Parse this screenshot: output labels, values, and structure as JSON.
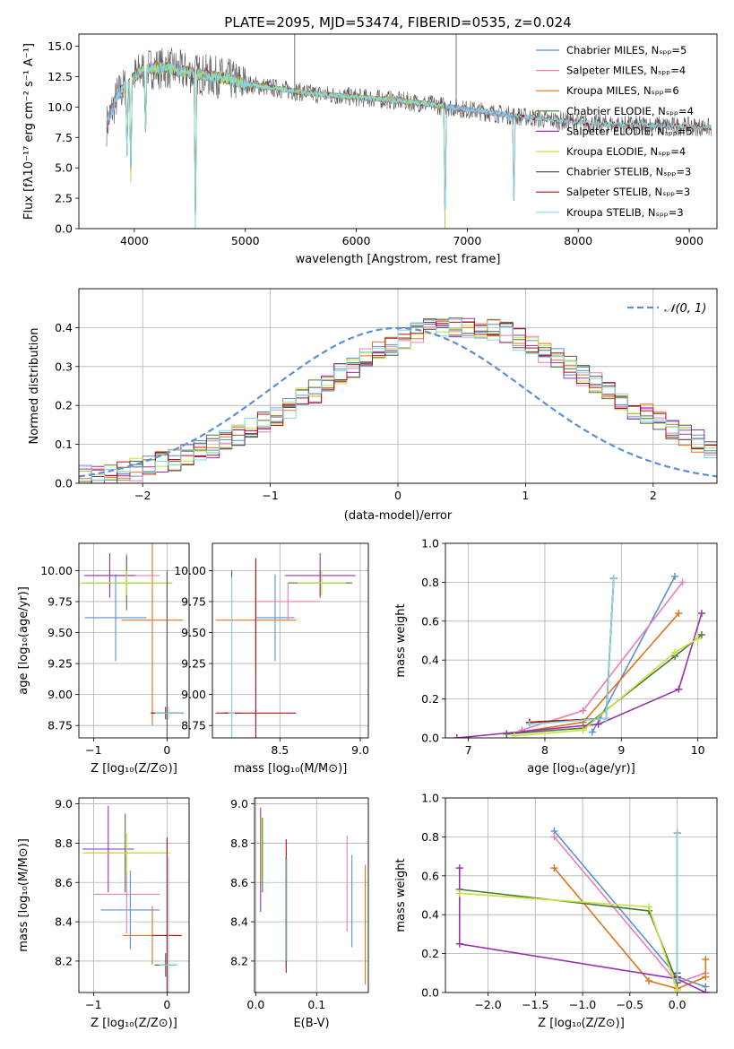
{
  "colors": {
    "chabrier_miles": "#5b8fd6",
    "salpeter_miles": "#e880b8",
    "kroupa_miles": "#e0741c",
    "chabrier_elodie": "#4a7a3a",
    "salpeter_elodie": "#9933aa",
    "kroupa_elodie": "#c8e040",
    "chabrier_stelib": "#555555",
    "salpeter_stelib": "#b01010",
    "kroupa_stelib": "#80d8e0",
    "normal": "#5b8fd6",
    "grid": "#b0b0b0"
  },
  "chart_data": [
    {
      "id": "spectrum",
      "type": "line",
      "title": "PLATE=2095, MJD=53474, FIBERID=0535, z=0.024",
      "xlabel": "wavelength [Angstrom, rest frame]",
      "ylabel": "Flux [fλ10⁻¹⁷ erg cm⁻² s⁻¹ A⁻¹]",
      "xlim": [
        3500,
        9250
      ],
      "ylim": [
        0,
        16
      ],
      "xticks": [
        "4000",
        "5000",
        "6000",
        "7000",
        "8000",
        "9000"
      ],
      "yticks": [
        "0.0",
        "2.5",
        "5.0",
        "7.5",
        "10.0",
        "12.5",
        "15.0"
      ],
      "legend_position": "top-right",
      "series": [
        {
          "name": "Chabrier MILES, Nₛₚₚ=5",
          "color_key": "chabrier_miles"
        },
        {
          "name": "Salpeter MILES, Nₛₚₚ=4",
          "color_key": "salpeter_miles"
        },
        {
          "name": "Kroupa MILES, Nₛₚₚ=6",
          "color_key": "kroupa_miles"
        },
        {
          "name": "Chabrier ELODIE, Nₛₚₚ=4",
          "color_key": "chabrier_elodie"
        },
        {
          "name": "Salpeter ELODIE, Nₛₚₚ=5",
          "color_key": "salpeter_elodie"
        },
        {
          "name": "Kroupa ELODIE, Nₛₚₚ=4",
          "color_key": "kroupa_elodie"
        },
        {
          "name": "Chabrier STELIB, Nₛₚₚ=3",
          "color_key": "chabrier_stelib"
        },
        {
          "name": "Salpeter STELIB, Nₛₚₚ=3",
          "color_key": "salpeter_stelib"
        },
        {
          "name": "Kroupa STELIB, Nₛₚₚ=3",
          "color_key": "kroupa_stelib"
        }
      ],
      "continuum": {
        "x": [
          3750,
          3850,
          4000,
          4100,
          4300,
          4500,
          4800,
          5000,
          5300,
          5600,
          6000,
          6300,
          6600,
          7000,
          7400,
          7800,
          8200,
          8600,
          9000,
          9200
        ],
        "y": [
          8.5,
          11.0,
          12.5,
          13.2,
          13.2,
          12.8,
          12.4,
          11.9,
          11.5,
          11.1,
          10.8,
          10.6,
          10.3,
          9.8,
          9.3,
          8.9,
          8.6,
          8.5,
          8.4,
          8.3
        ]
      },
      "absorption_lines": [
        {
          "x": 3934,
          "y": 6.0
        },
        {
          "x": 3968,
          "y": 3.8
        },
        {
          "x": 4101,
          "y": 7.5
        },
        {
          "x": 4550,
          "y": 0.0
        },
        {
          "x": 6800,
          "y": 0.0
        },
        {
          "x": 7420,
          "y": 1.0
        }
      ],
      "spikes": [
        {
          "x": 5445,
          "y": 16.0
        },
        {
          "x": 6900,
          "y": 16.0
        }
      ],
      "model_ranges": {
        "MILES": [
          3750,
          7420
        ],
        "ELODIE": [
          3900,
          6800
        ],
        "STELIB": [
          3750,
          9200
        ]
      }
    },
    {
      "id": "residuals",
      "type": "bar",
      "xlabel": "(data-model)/error",
      "ylabel": "Normed distribution",
      "xlim": [
        -2.5,
        2.5
      ],
      "ylim": [
        0,
        0.5
      ],
      "xticks": [
        "−2",
        "−1",
        "0",
        "1",
        "2"
      ],
      "yticks": [
        "0.0",
        "0.1",
        "0.2",
        "0.3",
        "0.4"
      ],
      "legend": "𝒩(0, 1)",
      "legend_position": "top-right",
      "bin_width": 0.1,
      "bin_start": -2.5,
      "envelope": [
        0.018,
        0.02,
        0.025,
        0.03,
        0.036,
        0.043,
        0.051,
        0.06,
        0.07,
        0.082,
        0.095,
        0.109,
        0.124,
        0.14,
        0.158,
        0.176,
        0.195,
        0.215,
        0.236,
        0.257,
        0.278,
        0.299,
        0.319,
        0.338,
        0.355,
        0.371,
        0.384,
        0.394,
        0.401,
        0.404,
        0.404,
        0.401,
        0.394,
        0.384,
        0.371,
        0.355,
        0.338,
        0.319,
        0.299,
        0.278,
        0.257,
        0.236,
        0.215,
        0.195,
        0.176,
        0.158,
        0.14,
        0.124,
        0.109,
        0.095,
        0.082,
        0.07,
        0.06,
        0.051,
        0.043,
        0.036,
        0.03,
        0.025,
        0.02,
        0.018
      ]
    },
    {
      "id": "age-vs-Z",
      "type": "scatter",
      "xlabel": "Z [log₁₀(Z/Z⊙)]",
      "ylabel": "age  [log₁₀(age/yr)]",
      "xlim": [
        -1.2,
        0.3
      ],
      "ylim": [
        8.65,
        10.22
      ],
      "xticks": [
        "−1",
        "0"
      ],
      "yticks": [
        "8.75",
        "9.00",
        "9.25",
        "9.50",
        "9.75",
        "10.00"
      ],
      "crosses": [
        {
          "x": -0.7,
          "y": 9.62,
          "dx": 0.42,
          "dy": 0.35,
          "color_key": "chabrier_miles"
        },
        {
          "x": -0.55,
          "y": 9.96,
          "dx": 0.45,
          "dy": 0.18,
          "color_key": "salpeter_miles"
        },
        {
          "x": -0.2,
          "y": 9.6,
          "dx": 0.42,
          "dy": 0.85,
          "color_key": "kroupa_miles"
        },
        {
          "x": -0.55,
          "y": 9.9,
          "dx": 0.62,
          "dy": 0.22,
          "color_key": "chabrier_elodie"
        },
        {
          "x": -0.78,
          "y": 9.96,
          "dx": 0.35,
          "dy": 0.18,
          "color_key": "salpeter_elodie"
        },
        {
          "x": -0.55,
          "y": 9.9,
          "dx": 0.62,
          "dy": 0.1,
          "color_key": "kroupa_elodie"
        },
        {
          "x": 0.0,
          "y": 8.85,
          "dx": 0.22,
          "dy": 1.15,
          "color_key": "chabrier_stelib"
        },
        {
          "x": -0.02,
          "y": 8.85,
          "dx": 0.2,
          "dy": 0.05,
          "color_key": "salpeter_stelib"
        },
        {
          "x": 0.02,
          "y": 8.85,
          "dx": 0.18,
          "dy": 0.05,
          "color_key": "kroupa_stelib"
        }
      ]
    },
    {
      "id": "age-vs-mass",
      "type": "scatter",
      "xlabel": "mass [log₁₀(M/M⊙)]",
      "ylabel": "",
      "xlim": [
        8.08,
        9.05
      ],
      "ylim": [
        8.65,
        10.22
      ],
      "xticks": [
        "8.5",
        "9.0"
      ],
      "yticks": [
        "8.75",
        "9.00",
        "9.25",
        "9.50",
        "9.75",
        "10.00"
      ],
      "crosses": [
        {
          "x": 8.47,
          "y": 9.62,
          "dx": 0.12,
          "dy": 0.35,
          "color_key": "chabrier_miles"
        },
        {
          "x": 8.55,
          "y": 9.75,
          "dx": 0.2,
          "dy": 0.15,
          "color_key": "salpeter_miles"
        },
        {
          "x": 8.35,
          "y": 9.6,
          "dx": 0.25,
          "dy": 0.4,
          "color_key": "kroupa_miles"
        },
        {
          "x": 8.75,
          "y": 9.9,
          "dx": 0.2,
          "dy": 0.1,
          "color_key": "chabrier_elodie"
        },
        {
          "x": 8.75,
          "y": 9.96,
          "dx": 0.22,
          "dy": 0.18,
          "color_key": "salpeter_elodie"
        },
        {
          "x": 8.76,
          "y": 9.9,
          "dx": 0.15,
          "dy": 0.1,
          "color_key": "kroupa_elodie"
        },
        {
          "x": 8.2,
          "y": 8.85,
          "dx": 0.05,
          "dy": 1.15,
          "color_key": "chabrier_stelib"
        },
        {
          "x": 8.35,
          "y": 8.85,
          "dx": 0.25,
          "dy": 1.25,
          "color_key": "salpeter_stelib"
        },
        {
          "x": 8.2,
          "y": 8.85,
          "dx": 0.02,
          "dy": 1.1,
          "color_key": "kroupa_stelib"
        }
      ]
    },
    {
      "id": "massweight-vs-age",
      "type": "line",
      "xlabel": "age  [log₁₀(age/yr)]",
      "ylabel": "mass weight",
      "xlim": [
        6.7,
        10.25
      ],
      "ylim": [
        0,
        1
      ],
      "xticks": [
        "7",
        "8",
        "9",
        "10"
      ],
      "yticks": [
        "0.0",
        "0.2",
        "0.4",
        "0.6",
        "0.8",
        "1.0"
      ],
      "series": [
        {
          "color_key": "chabrier_miles",
          "x": [
            8.62,
            8.72,
            9.7
          ],
          "y": [
            0.03,
            0.1,
            0.83
          ]
        },
        {
          "color_key": "salpeter_miles",
          "x": [
            7.7,
            8.5,
            9.8
          ],
          "y": [
            0.04,
            0.14,
            0.8
          ]
        },
        {
          "color_key": "kroupa_miles",
          "x": [
            7.5,
            8.5,
            9.75
          ],
          "y": [
            0.02,
            0.08,
            0.64
          ]
        },
        {
          "color_key": "chabrier_elodie",
          "x": [
            7.5,
            8.5,
            9.7,
            10.05
          ],
          "y": [
            0.02,
            0.05,
            0.42,
            0.53
          ]
        },
        {
          "color_key": "salpeter_elodie",
          "x": [
            6.85,
            8.7,
            9.75,
            10.05
          ],
          "y": [
            0.0,
            0.07,
            0.25,
            0.64
          ]
        },
        {
          "color_key": "kroupa_elodie",
          "x": [
            7.6,
            8.5,
            9.7,
            10.0
          ],
          "y": [
            0.01,
            0.04,
            0.44,
            0.51
          ]
        },
        {
          "color_key": "chabrier_stelib",
          "x": [
            7.8,
            8.8,
            8.9
          ],
          "y": [
            0.08,
            0.1,
            0.82
          ]
        },
        {
          "color_key": "salpeter_stelib",
          "x": [
            7.8,
            8.8,
            8.9
          ],
          "y": [
            0.08,
            0.1,
            0.82
          ]
        },
        {
          "color_key": "kroupa_stelib",
          "x": [
            7.8,
            8.8,
            8.9
          ],
          "y": [
            0.07,
            0.1,
            0.82
          ]
        }
      ]
    },
    {
      "id": "mass-vs-Z",
      "type": "scatter",
      "xlabel": "Z [log₁₀(Z/Z⊙)]",
      "ylabel": "mass [log₁₀(M/M⊙)]",
      "xlim": [
        -1.2,
        0.3
      ],
      "ylim": [
        8.04,
        9.03
      ],
      "xticks": [
        "−1",
        "0"
      ],
      "yticks": [
        "8.2",
        "8.4",
        "8.6",
        "8.8",
        "9.0"
      ],
      "crosses": [
        {
          "x": -0.5,
          "y": 8.46,
          "dx": 0.4,
          "dy": 0.2,
          "color_key": "chabrier_miles"
        },
        {
          "x": -0.55,
          "y": 8.54,
          "dx": 0.45,
          "dy": 0.2,
          "color_key": "salpeter_miles"
        },
        {
          "x": -0.2,
          "y": 8.33,
          "dx": 0.4,
          "dy": 0.15,
          "color_key": "kroupa_miles"
        },
        {
          "x": -0.57,
          "y": 8.75,
          "dx": 0.55,
          "dy": 0.2,
          "color_key": "chabrier_elodie"
        },
        {
          "x": -0.8,
          "y": 8.77,
          "dx": 0.35,
          "dy": 0.22,
          "color_key": "salpeter_elodie"
        },
        {
          "x": -0.55,
          "y": 8.75,
          "dx": 0.6,
          "dy": 0.1,
          "color_key": "kroupa_elodie"
        },
        {
          "x": -0.02,
          "y": 8.18,
          "dx": 0.15,
          "dy": 0.06,
          "color_key": "chabrier_stelib"
        },
        {
          "x": 0.0,
          "y": 8.33,
          "dx": 0.2,
          "dy": 0.5,
          "color_key": "salpeter_stelib"
        },
        {
          "x": 0.02,
          "y": 8.18,
          "dx": 0.12,
          "dy": 0.55,
          "color_key": "kroupa_stelib"
        }
      ]
    },
    {
      "id": "mass-vs-EBV",
      "type": "scatter",
      "xlabel": "E(B-V)",
      "ylabel": "",
      "xlim": [
        -0.002,
        0.185
      ],
      "ylim": [
        8.04,
        9.03
      ],
      "xticks": [
        "0.0",
        "0.1"
      ],
      "yticks": [
        "8.2",
        "8.4",
        "8.6",
        "8.8",
        "9.0"
      ],
      "vlines": [
        {
          "x": 0.008,
          "y1": 8.45,
          "y2": 8.98,
          "color_key": "salpeter_elodie"
        },
        {
          "x": 0.009,
          "y1": 8.6,
          "y2": 8.95,
          "color_key": "kroupa_elodie"
        },
        {
          "x": 0.011,
          "y1": 8.55,
          "y2": 8.93,
          "color_key": "chabrier_elodie"
        },
        {
          "x": 0.05,
          "y1": 8.14,
          "y2": 8.82,
          "color_key": "salpeter_stelib"
        },
        {
          "x": 0.05,
          "y1": 8.17,
          "y2": 8.73,
          "color_key": "chabrier_stelib"
        },
        {
          "x": 0.051,
          "y1": 8.2,
          "y2": 8.72,
          "color_key": "kroupa_stelib"
        },
        {
          "x": 0.15,
          "y1": 8.35,
          "y2": 8.84,
          "color_key": "salpeter_miles"
        },
        {
          "x": 0.158,
          "y1": 8.27,
          "y2": 8.74,
          "color_key": "chabrier_miles"
        },
        {
          "x": 0.18,
          "y1": 8.08,
          "y2": 8.69,
          "color_key": "kroupa_miles"
        }
      ]
    },
    {
      "id": "massweight-vs-Z",
      "type": "line",
      "xlabel": "Z [log₁₀(Z/Z⊙)]",
      "ylabel": "mass weight",
      "xlim": [
        -2.45,
        0.42
      ],
      "ylim": [
        0,
        1
      ],
      "xticks": [
        "−2.0",
        "−1.5",
        "−1.0",
        "−0.5",
        "0.0"
      ],
      "yticks": [
        "0.0",
        "0.2",
        "0.4",
        "0.6",
        "0.8",
        "1.0"
      ],
      "series": [
        {
          "color_key": "chabrier_miles",
          "x": [
            -1.3,
            0.0,
            0.3
          ],
          "y": [
            0.83,
            0.08,
            0.03
          ]
        },
        {
          "color_key": "salpeter_miles",
          "x": [
            -1.3,
            0.0,
            0.3
          ],
          "y": [
            0.8,
            0.05,
            0.1
          ]
        },
        {
          "color_key": "kroupa_miles",
          "x": [
            -1.3,
            -0.3,
            0.0,
            0.3,
            0.3
          ],
          "y": [
            0.64,
            0.06,
            0.02,
            0.08,
            0.17
          ]
        },
        {
          "color_key": "chabrier_elodie",
          "x": [
            -2.3,
            -0.3,
            0.0
          ],
          "y": [
            0.53,
            0.42,
            0.05
          ]
        },
        {
          "color_key": "salpeter_elodie",
          "x": [
            -2.3,
            -2.3,
            0.0,
            0.3
          ],
          "y": [
            0.64,
            0.25,
            0.07,
            0.0
          ]
        },
        {
          "color_key": "kroupa_elodie",
          "x": [
            -2.3,
            -0.3,
            0.0
          ],
          "y": [
            0.51,
            0.44,
            0.01
          ]
        },
        {
          "color_key": "chabrier_stelib",
          "x": [
            0.0,
            0.0,
            0.0
          ],
          "y": [
            0.08,
            0.1,
            0.82
          ]
        },
        {
          "color_key": "salpeter_stelib",
          "x": [
            0.0,
            0.0
          ],
          "y": [
            0.08,
            0.82
          ]
        },
        {
          "color_key": "kroupa_stelib",
          "x": [
            0.0,
            0.0
          ],
          "y": [
            0.07,
            0.82
          ]
        }
      ]
    }
  ]
}
